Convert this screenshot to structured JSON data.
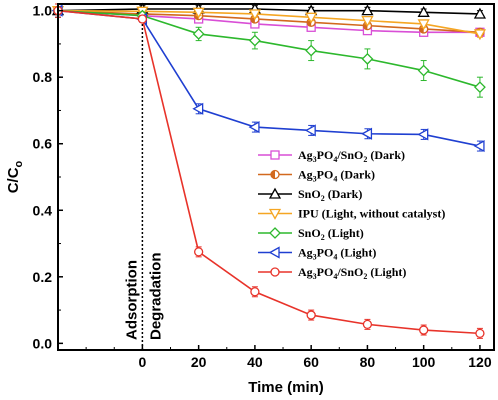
{
  "chart_data": {
    "type": "line",
    "xlabel": "Time (min)",
    "ylabel": "C/C",
    "ylabel_sub": "o",
    "xlim": [
      -30,
      125
    ],
    "ylim": [
      -0.02,
      1.02
    ],
    "x_ticks": [
      0,
      20,
      40,
      60,
      80,
      100,
      120
    ],
    "y_ticks": [
      0.0,
      0.2,
      0.4,
      0.6,
      0.8,
      1.0
    ],
    "x_tick_labels": [
      "0",
      "20",
      "40",
      "60",
      "80",
      "100",
      "120"
    ],
    "y_tick_labels": [
      "0.0",
      "0.2",
      "0.4",
      "0.6",
      "0.8",
      "1.0"
    ],
    "annotations": [
      "Adsorption",
      "Degradation"
    ],
    "x": [
      -30,
      0,
      20,
      40,
      60,
      80,
      100,
      120
    ],
    "series": [
      {
        "name": "Ag3PO4/SnO2 (Dark)",
        "legend": [
          {
            "t": "Ag"
          },
          {
            "t": "3",
            "s": 1
          },
          {
            "t": "PO"
          },
          {
            "t": "4",
            "s": 1
          },
          {
            "t": "/SnO"
          },
          {
            "t": "2",
            "s": 1
          },
          {
            "t": " (Dark)"
          }
        ],
        "color": "#d94fd6",
        "marker": "square",
        "values": [
          1.0,
          0.985,
          0.975,
          0.96,
          0.95,
          0.94,
          0.935,
          0.935
        ],
        "errors": [
          0.02,
          0.01,
          0.01,
          0.01,
          0.01,
          0.01,
          0.01,
          0.01
        ]
      },
      {
        "name": "Ag3PO4 (Dark)",
        "legend": [
          {
            "t": "Ag"
          },
          {
            "t": "3",
            "s": 1
          },
          {
            "t": "PO"
          },
          {
            "t": "4",
            "s": 1
          },
          {
            "t": " (Dark)"
          }
        ],
        "color": "#d2691e",
        "marker": "halfcircle",
        "values": [
          1.0,
          0.99,
          0.985,
          0.975,
          0.965,
          0.955,
          0.945,
          0.935
        ],
        "errors": [
          0.02,
          0.01,
          0.01,
          0.01,
          0.01,
          0.01,
          0.01,
          0.01
        ]
      },
      {
        "name": "SnO2 (Dark)",
        "legend": [
          {
            "t": "SnO"
          },
          {
            "t": "2",
            "s": 1
          },
          {
            "t": " (Dark)"
          }
        ],
        "color": "#000000",
        "marker": "triangle-up",
        "values": [
          1.0,
          1.005,
          1.005,
          1.005,
          1.0,
          1.0,
          0.995,
          0.99
        ],
        "errors": [
          0.01,
          0.01,
          0.01,
          0.01,
          0.01,
          0.01,
          0.01,
          0.01
        ]
      },
      {
        "name": "IPU (Light, without catalyst)",
        "legend": [
          {
            "t": "IPU (Light, without catalyst)"
          }
        ],
        "color": "#f5a623",
        "marker": "triangle-down",
        "values": [
          1.0,
          0.998,
          0.995,
          0.99,
          0.98,
          0.97,
          0.96,
          0.93
        ],
        "errors": [
          0.01,
          0.01,
          0.01,
          0.01,
          0.01,
          0.01,
          0.01,
          0.01
        ]
      },
      {
        "name": "SnO2 (Light)",
        "legend": [
          {
            "t": "SnO"
          },
          {
            "t": "2",
            "s": 1
          },
          {
            "t": " (Light)"
          }
        ],
        "color": "#2db82d",
        "marker": "diamond",
        "values": [
          1.0,
          0.985,
          0.93,
          0.91,
          0.88,
          0.855,
          0.82,
          0.77
        ],
        "errors": [
          0.02,
          0.01,
          0.02,
          0.025,
          0.03,
          0.03,
          0.03,
          0.03
        ]
      },
      {
        "name": "Ag3PO4 (Light)",
        "legend": [
          {
            "t": "Ag"
          },
          {
            "t": "3",
            "s": 1
          },
          {
            "t": "PO"
          },
          {
            "t": "4",
            "s": 1
          },
          {
            "t": " (Light)"
          }
        ],
        "color": "#1f3fd1",
        "marker": "triangle-left",
        "values": [
          1.0,
          0.975,
          0.705,
          0.65,
          0.64,
          0.63,
          0.628,
          0.593
        ],
        "errors": [
          0.02,
          0.01,
          0.015,
          0.015,
          0.015,
          0.015,
          0.015,
          0.015
        ]
      },
      {
        "name": "Ag3PO4/SnO2 (Light)",
        "legend": [
          {
            "t": "Ag"
          },
          {
            "t": "3",
            "s": 1
          },
          {
            "t": "PO"
          },
          {
            "t": "4",
            "s": 1
          },
          {
            "t": "/SnO"
          },
          {
            "t": "2",
            "s": 1
          },
          {
            "t": " (Light)"
          }
        ],
        "color": "#e8332a",
        "marker": "circle",
        "values": [
          1.0,
          0.975,
          0.275,
          0.155,
          0.085,
          0.057,
          0.04,
          0.03
        ],
        "errors": [
          0.02,
          0.01,
          0.015,
          0.015,
          0.015,
          0.015,
          0.015,
          0.015
        ]
      }
    ]
  }
}
